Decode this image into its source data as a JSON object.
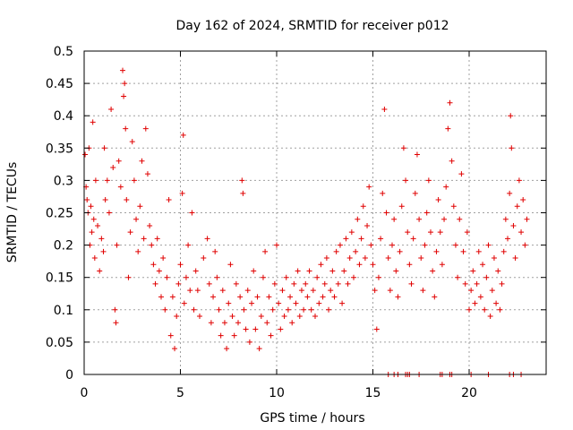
{
  "chart_data": {
    "type": "scatter",
    "title": "Day 162 of 2024, SRMTID for receiver p012",
    "xlabel": "GPS time / hours",
    "ylabel": "SRMTID / TECUs",
    "xlim": [
      0,
      24
    ],
    "ylim": [
      0,
      0.5
    ],
    "xticks": [
      0,
      5,
      10,
      15,
      20
    ],
    "xtick_labels": [
      "0",
      "5",
      "10",
      "15",
      "20"
    ],
    "yticks": [
      0,
      0.05,
      0.1,
      0.15,
      0.2,
      0.25,
      0.3,
      0.35,
      0.4,
      0.45,
      0.5
    ],
    "ytick_labels": [
      "0",
      "0.05",
      "0.1",
      "0.15",
      "0.2",
      "0.25",
      "0.3",
      "0.35",
      "0.4",
      "0.45",
      "0.5"
    ],
    "grid": true,
    "marker": "+",
    "color": "#e00000",
    "series": [
      {
        "name": "SRMTID",
        "points": [
          [
            0.05,
            0.34
          ],
          [
            0.1,
            0.29
          ],
          [
            0.15,
            0.27
          ],
          [
            0.2,
            0.25
          ],
          [
            0.25,
            0.35
          ],
          [
            0.3,
            0.2
          ],
          [
            0.35,
            0.26
          ],
          [
            0.4,
            0.22
          ],
          [
            0.45,
            0.39
          ],
          [
            0.5,
            0.24
          ],
          [
            0.55,
            0.18
          ],
          [
            0.6,
            0.3
          ],
          [
            0.7,
            0.23
          ],
          [
            0.8,
            0.16
          ],
          [
            0.9,
            0.21
          ],
          [
            1.0,
            0.19
          ],
          [
            1.05,
            0.35
          ],
          [
            1.1,
            0.27
          ],
          [
            1.2,
            0.3
          ],
          [
            1.3,
            0.25
          ],
          [
            1.4,
            0.41
          ],
          [
            1.5,
            0.32
          ],
          [
            1.6,
            0.1
          ],
          [
            1.65,
            0.08
          ],
          [
            1.7,
            0.2
          ],
          [
            1.8,
            0.33
          ],
          [
            1.9,
            0.29
          ],
          [
            2.0,
            0.47
          ],
          [
            2.05,
            0.43
          ],
          [
            2.1,
            0.45
          ],
          [
            2.15,
            0.38
          ],
          [
            2.2,
            0.27
          ],
          [
            2.3,
            0.15
          ],
          [
            2.4,
            0.22
          ],
          [
            2.5,
            0.36
          ],
          [
            2.6,
            0.3
          ],
          [
            2.7,
            0.24
          ],
          [
            2.8,
            0.19
          ],
          [
            2.9,
            0.26
          ],
          [
            3.0,
            0.33
          ],
          [
            3.1,
            0.21
          ],
          [
            3.2,
            0.38
          ],
          [
            3.3,
            0.31
          ],
          [
            3.4,
            0.23
          ],
          [
            3.5,
            0.2
          ],
          [
            3.6,
            0.17
          ],
          [
            3.7,
            0.14
          ],
          [
            3.8,
            0.21
          ],
          [
            3.9,
            0.16
          ],
          [
            4.0,
            0.12
          ],
          [
            4.1,
            0.18
          ],
          [
            4.2,
            0.1
          ],
          [
            4.3,
            0.15
          ],
          [
            4.4,
            0.27
          ],
          [
            4.5,
            0.06
          ],
          [
            4.6,
            0.12
          ],
          [
            4.7,
            0.04
          ],
          [
            4.8,
            0.09
          ],
          [
            4.9,
            0.14
          ],
          [
            5.0,
            0.17
          ],
          [
            5.1,
            0.28
          ],
          [
            5.15,
            0.37
          ],
          [
            5.2,
            0.11
          ],
          [
            5.3,
            0.15
          ],
          [
            5.4,
            0.2
          ],
          [
            5.5,
            0.13
          ],
          [
            5.6,
            0.25
          ],
          [
            5.7,
            0.1
          ],
          [
            5.8,
            0.16
          ],
          [
            5.9,
            0.13
          ],
          [
            6.0,
            0.09
          ],
          [
            6.2,
            0.18
          ],
          [
            6.4,
            0.21
          ],
          [
            6.5,
            0.14
          ],
          [
            6.6,
            0.08
          ],
          [
            6.7,
            0.12
          ],
          [
            6.8,
            0.19
          ],
          [
            6.9,
            0.15
          ],
          [
            7.0,
            0.1
          ],
          [
            7.1,
            0.06
          ],
          [
            7.2,
            0.13
          ],
          [
            7.3,
            0.08
          ],
          [
            7.4,
            0.04
          ],
          [
            7.5,
            0.11
          ],
          [
            7.6,
            0.17
          ],
          [
            7.7,
            0.09
          ],
          [
            7.8,
            0.06
          ],
          [
            7.9,
            0.14
          ],
          [
            8.0,
            0.08
          ],
          [
            8.1,
            0.12
          ],
          [
            8.2,
            0.3
          ],
          [
            8.25,
            0.28
          ],
          [
            8.3,
            0.1
          ],
          [
            8.4,
            0.07
          ],
          [
            8.5,
            0.13
          ],
          [
            8.6,
            0.05
          ],
          [
            8.7,
            0.11
          ],
          [
            8.8,
            0.16
          ],
          [
            8.9,
            0.07
          ],
          [
            9.0,
            0.12
          ],
          [
            9.1,
            0.04
          ],
          [
            9.2,
            0.09
          ],
          [
            9.3,
            0.15
          ],
          [
            9.4,
            0.19
          ],
          [
            9.5,
            0.08
          ],
          [
            9.6,
            0.12
          ],
          [
            9.7,
            0.06
          ],
          [
            9.8,
            0.1
          ],
          [
            9.9,
            0.14
          ],
          [
            10.0,
            0.2
          ],
          [
            10.1,
            0.11
          ],
          [
            10.2,
            0.07
          ],
          [
            10.3,
            0.13
          ],
          [
            10.4,
            0.09
          ],
          [
            10.5,
            0.15
          ],
          [
            10.6,
            0.1
          ],
          [
            10.7,
            0.12
          ],
          [
            10.8,
            0.08
          ],
          [
            10.9,
            0.14
          ],
          [
            11.0,
            0.11
          ],
          [
            11.1,
            0.16
          ],
          [
            11.2,
            0.09
          ],
          [
            11.3,
            0.13
          ],
          [
            11.4,
            0.1
          ],
          [
            11.5,
            0.14
          ],
          [
            11.6,
            0.12
          ],
          [
            11.7,
            0.16
          ],
          [
            11.8,
            0.1
          ],
          [
            11.9,
            0.13
          ],
          [
            12.0,
            0.09
          ],
          [
            12.1,
            0.15
          ],
          [
            12.2,
            0.11
          ],
          [
            12.3,
            0.17
          ],
          [
            12.4,
            0.12
          ],
          [
            12.5,
            0.14
          ],
          [
            12.6,
            0.18
          ],
          [
            12.7,
            0.1
          ],
          [
            12.8,
            0.13
          ],
          [
            12.9,
            0.16
          ],
          [
            13.0,
            0.12
          ],
          [
            13.1,
            0.19
          ],
          [
            13.2,
            0.14
          ],
          [
            13.3,
            0.2
          ],
          [
            13.4,
            0.11
          ],
          [
            13.5,
            0.16
          ],
          [
            13.6,
            0.21
          ],
          [
            13.7,
            0.14
          ],
          [
            13.8,
            0.18
          ],
          [
            13.9,
            0.22
          ],
          [
            14.0,
            0.15
          ],
          [
            14.1,
            0.19
          ],
          [
            14.2,
            0.24
          ],
          [
            14.3,
            0.17
          ],
          [
            14.4,
            0.21
          ],
          [
            14.5,
            0.26
          ],
          [
            14.6,
            0.18
          ],
          [
            14.7,
            0.23
          ],
          [
            14.8,
            0.29
          ],
          [
            14.9,
            0.2
          ],
          [
            15.0,
            0.17
          ],
          [
            15.1,
            0.13
          ],
          [
            15.2,
            0.07
          ],
          [
            15.3,
            0.15
          ],
          [
            15.4,
            0.21
          ],
          [
            15.5,
            0.28
          ],
          [
            15.6,
            0.41
          ],
          [
            15.7,
            0.25
          ],
          [
            15.8,
            0.18
          ],
          [
            15.9,
            0.13
          ],
          [
            16.0,
            0.2
          ],
          [
            16.1,
            0.24
          ],
          [
            16.2,
            0.16
          ],
          [
            16.3,
            0.12
          ],
          [
            16.4,
            0.19
          ],
          [
            16.5,
            0.26
          ],
          [
            16.6,
            0.35
          ],
          [
            16.7,
            0.3
          ],
          [
            16.8,
            0.22
          ],
          [
            16.9,
            0.17
          ],
          [
            17.0,
            0.14
          ],
          [
            17.1,
            0.21
          ],
          [
            17.2,
            0.28
          ],
          [
            17.3,
            0.34
          ],
          [
            17.4,
            0.24
          ],
          [
            17.5,
            0.18
          ],
          [
            17.6,
            0.13
          ],
          [
            17.7,
            0.2
          ],
          [
            17.8,
            0.25
          ],
          [
            17.9,
            0.3
          ],
          [
            18.0,
            0.22
          ],
          [
            18.1,
            0.16
          ],
          [
            18.2,
            0.12
          ],
          [
            18.3,
            0.19
          ],
          [
            18.4,
            0.27
          ],
          [
            18.5,
            0.22
          ],
          [
            18.6,
            0.17
          ],
          [
            18.7,
            0.24
          ],
          [
            18.8,
            0.29
          ],
          [
            18.9,
            0.38
          ],
          [
            19.0,
            0.42
          ],
          [
            19.1,
            0.33
          ],
          [
            19.2,
            0.26
          ],
          [
            19.3,
            0.2
          ],
          [
            19.4,
            0.15
          ],
          [
            19.5,
            0.24
          ],
          [
            19.6,
            0.31
          ],
          [
            19.7,
            0.19
          ],
          [
            19.8,
            0.14
          ],
          [
            19.9,
            0.22
          ],
          [
            20.0,
            0.1
          ],
          [
            20.1,
            0.13
          ],
          [
            20.2,
            0.16
          ],
          [
            20.3,
            0.11
          ],
          [
            20.4,
            0.14
          ],
          [
            20.5,
            0.19
          ],
          [
            20.6,
            0.12
          ],
          [
            20.7,
            0.17
          ],
          [
            20.8,
            0.1
          ],
          [
            20.9,
            0.15
          ],
          [
            21.0,
            0.2
          ],
          [
            21.1,
            0.09
          ],
          [
            21.2,
            0.13
          ],
          [
            21.3,
            0.18
          ],
          [
            21.4,
            0.11
          ],
          [
            21.5,
            0.16
          ],
          [
            21.6,
            0.1
          ],
          [
            21.7,
            0.14
          ],
          [
            21.8,
            0.19
          ],
          [
            21.9,
            0.24
          ],
          [
            22.0,
            0.21
          ],
          [
            22.1,
            0.28
          ],
          [
            22.15,
            0.4
          ],
          [
            22.2,
            0.35
          ],
          [
            22.3,
            0.23
          ],
          [
            22.4,
            0.18
          ],
          [
            22.5,
            0.26
          ],
          [
            22.6,
            0.3
          ],
          [
            22.7,
            0.22
          ],
          [
            22.8,
            0.27
          ],
          [
            22.9,
            0.2
          ],
          [
            23.0,
            0.24
          ],
          [
            15.8,
            0.0
          ],
          [
            16.1,
            0.0
          ],
          [
            16.3,
            0.0
          ],
          [
            16.7,
            0.0
          ],
          [
            16.8,
            0.0
          ],
          [
            16.9,
            0.0
          ],
          [
            17.4,
            0.0
          ],
          [
            18.5,
            0.0
          ],
          [
            18.6,
            0.0
          ],
          [
            19.0,
            0.0
          ],
          [
            19.1,
            0.0
          ],
          [
            20.1,
            0.0
          ],
          [
            21.0,
            0.0
          ],
          [
            22.1,
            0.0
          ],
          [
            22.3,
            0.0
          ],
          [
            22.7,
            0.0
          ]
        ]
      }
    ]
  }
}
